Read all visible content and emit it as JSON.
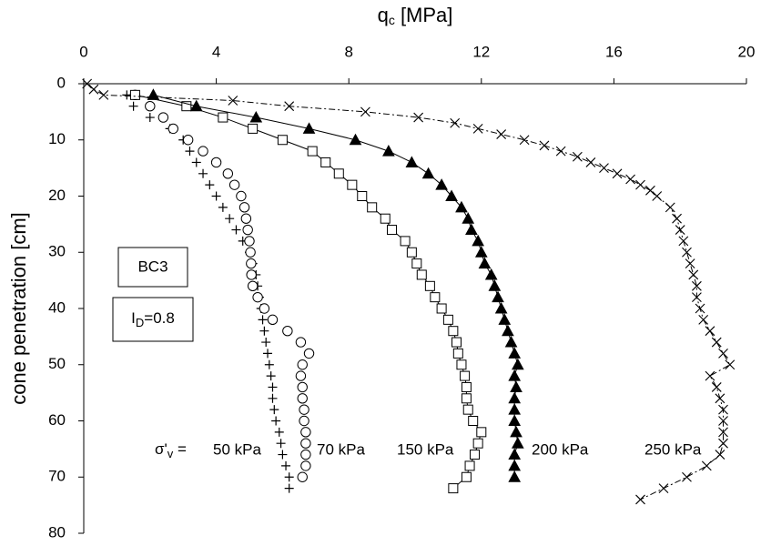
{
  "chart_data": {
    "type": "scatter",
    "x_label": {
      "main": "q",
      "sub": "c",
      "rest": " [MPa]"
    },
    "y_label": "cone penetration [cm]",
    "xlim": [
      0,
      20
    ],
    "xticks": [
      0,
      4,
      8,
      12,
      16,
      20
    ],
    "ylim": [
      0,
      80
    ],
    "yticks": [
      0,
      10,
      20,
      30,
      40,
      50,
      60,
      70,
      80
    ],
    "y_reversed": true,
    "x_axis_position": "top",
    "annotations": [
      {
        "main": "BC3"
      },
      {
        "main": "I",
        "sub": "D",
        "rest": "=0.8"
      },
      {
        "main": "σ'",
        "sub": "v",
        "rest": " ="
      }
    ],
    "series": [
      {
        "name": "50 kPa",
        "marker": "plus",
        "line": "none",
        "color": "#000000",
        "y": [
          2,
          4,
          6,
          8,
          10,
          12,
          14,
          16,
          18,
          20,
          22,
          24,
          26,
          28,
          30,
          32,
          34,
          36,
          38,
          40,
          42,
          44,
          46,
          48,
          50,
          52,
          54,
          56,
          58,
          60,
          62,
          64,
          66,
          68,
          70,
          72
        ],
        "x": [
          1.3,
          1.5,
          2.0,
          2.6,
          3.0,
          3.2,
          3.4,
          3.6,
          3.8,
          4.0,
          4.2,
          4.4,
          4.6,
          4.8,
          5.0,
          5.1,
          5.2,
          5.25,
          5.3,
          5.35,
          5.4,
          5.45,
          5.5,
          5.55,
          5.6,
          5.65,
          5.7,
          5.7,
          5.75,
          5.8,
          5.9,
          5.95,
          6.0,
          6.1,
          6.2,
          6.2
        ]
      },
      {
        "name": "70 kPa",
        "marker": "circle",
        "line": "none",
        "color": "#000000",
        "y": [
          2,
          4,
          6,
          8,
          10,
          12,
          14,
          16,
          18,
          20,
          22,
          24,
          26,
          28,
          30,
          32,
          34,
          36,
          38,
          40,
          42,
          44,
          46,
          48,
          50,
          52,
          54,
          56,
          58,
          60,
          62,
          64,
          66,
          68,
          70
        ],
        "x": [
          1.55,
          2.0,
          2.4,
          2.7,
          3.15,
          3.6,
          4.0,
          4.35,
          4.55,
          4.75,
          4.85,
          4.9,
          4.95,
          5.0,
          5.03,
          5.05,
          5.06,
          5.1,
          5.25,
          5.45,
          5.7,
          6.15,
          6.55,
          6.8,
          6.6,
          6.55,
          6.6,
          6.6,
          6.65,
          6.65,
          6.7,
          6.7,
          6.7,
          6.7,
          6.6
        ]
      },
      {
        "name": "150 kPa",
        "marker": "square",
        "line": "solid",
        "color": "#000000",
        "y": [
          2,
          4,
          6,
          8,
          10,
          12,
          14,
          16,
          18,
          20,
          22,
          24,
          26,
          28,
          30,
          32,
          34,
          36,
          38,
          40,
          42,
          44,
          46,
          48,
          50,
          52,
          54,
          56,
          58,
          60,
          62,
          64,
          66,
          68,
          70,
          72
        ],
        "x": [
          1.55,
          3.1,
          4.2,
          5.1,
          6.0,
          6.9,
          7.3,
          7.7,
          8.1,
          8.4,
          8.7,
          9.1,
          9.3,
          9.7,
          9.9,
          10.05,
          10.2,
          10.45,
          10.6,
          10.8,
          11.0,
          11.15,
          11.25,
          11.3,
          11.4,
          11.5,
          11.55,
          11.55,
          11.6,
          11.75,
          12.0,
          11.9,
          11.8,
          11.65,
          11.55,
          11.15
        ]
      },
      {
        "name": "200 kPa",
        "marker": "triangle",
        "line": "solid",
        "color": "#000000",
        "y": [
          2,
          4,
          6,
          8,
          10,
          12,
          14,
          16,
          18,
          20,
          22,
          24,
          26,
          28,
          30,
          32,
          34,
          36,
          38,
          40,
          42,
          44,
          46,
          48,
          50,
          52,
          54,
          56,
          58,
          60,
          62,
          64,
          66,
          68,
          70
        ],
        "x": [
          2.1,
          3.4,
          5.2,
          6.8,
          8.2,
          9.2,
          9.9,
          10.4,
          10.8,
          11.1,
          11.4,
          11.6,
          11.7,
          11.9,
          12.0,
          12.1,
          12.3,
          12.4,
          12.5,
          12.6,
          12.7,
          12.8,
          12.9,
          13.0,
          13.1,
          13.0,
          13.05,
          13.0,
          13.0,
          13.0,
          13.05,
          13.1,
          13.0,
          13.0,
          13.0
        ]
      },
      {
        "name": "250 kPa",
        "marker": "cross",
        "line": "dashdot",
        "color": "#000000",
        "y": [
          0,
          1,
          2,
          3,
          4,
          5,
          6,
          7,
          8,
          9,
          10,
          11,
          12,
          13,
          14,
          15,
          16,
          17,
          18,
          19,
          20,
          22,
          24,
          26,
          28,
          30,
          32,
          34,
          36,
          38,
          40,
          42,
          44,
          46,
          48,
          50,
          52,
          54,
          56,
          58,
          60,
          62,
          64,
          66,
          68,
          70,
          72,
          74
        ],
        "x": [
          0.1,
          0.3,
          0.6,
          4.5,
          6.2,
          8.5,
          10.1,
          11.2,
          11.9,
          12.6,
          13.3,
          13.9,
          14.4,
          14.9,
          15.3,
          15.7,
          16.1,
          16.5,
          16.8,
          17.1,
          17.3,
          17.7,
          17.9,
          18.0,
          18.1,
          18.2,
          18.3,
          18.4,
          18.5,
          18.5,
          18.6,
          18.7,
          18.9,
          19.1,
          19.3,
          19.5,
          18.9,
          19.1,
          19.2,
          19.3,
          19.3,
          19.3,
          19.3,
          19.2,
          18.8,
          18.2,
          17.5,
          16.8
        ]
      }
    ]
  }
}
